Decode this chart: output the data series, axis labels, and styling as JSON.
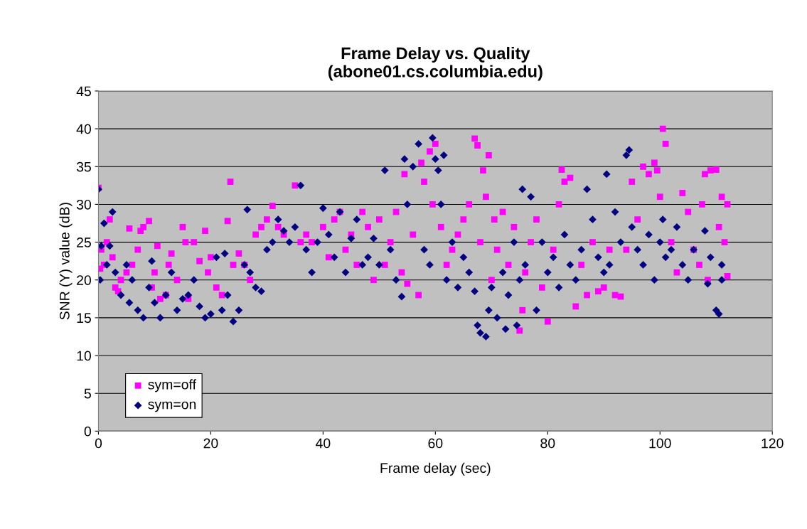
{
  "chart_data": {
    "type": "scatter",
    "title": "Frame Delay vs. Quality\n(abone01.cs.columbia.edu)",
    "xlabel": "Frame delay (sec)",
    "ylabel": "SNR (Y) value (dB)",
    "xlim": [
      0,
      120
    ],
    "xticks": [
      0,
      20,
      40,
      60,
      80,
      100,
      120
    ],
    "ylim": [
      0,
      45
    ],
    "yticks": [
      0,
      5,
      10,
      15,
      20,
      25,
      30,
      35,
      40,
      45
    ],
    "grid": "y",
    "legend": "bottom left",
    "series": [
      {
        "name": "sym=off",
        "color": "#ff00ff",
        "marker": "square",
        "x": [
          0,
          0.3,
          0.5,
          1,
          1.5,
          2,
          2.5,
          3,
          3.5,
          4,
          5,
          5.5,
          6,
          7,
          7.5,
          8,
          9,
          9.5,
          10,
          10.5,
          11,
          12,
          12.5,
          13,
          14,
          15,
          15.5,
          16,
          17,
          18,
          19,
          19.5,
          20,
          21,
          22,
          23,
          23.5,
          24,
          25,
          26,
          27,
          28,
          29,
          30,
          31,
          32,
          33,
          35,
          36,
          37,
          38,
          40,
          41,
          42,
          43,
          44,
          45,
          46,
          47,
          48,
          49,
          50,
          51,
          52,
          53,
          54,
          54.5,
          55,
          56,
          57,
          57.5,
          58,
          59,
          59.5,
          60,
          61,
          62,
          63,
          64,
          65,
          66,
          67,
          67.5,
          68,
          68.5,
          69,
          69.5,
          70,
          70.5,
          71,
          72,
          73,
          74,
          75,
          75.5,
          76,
          77,
          78,
          79,
          80,
          81,
          82,
          82.5,
          83,
          84,
          85,
          86,
          87,
          88,
          89,
          90,
          91,
          92,
          93,
          94,
          95,
          96,
          97,
          98,
          99,
          99.5,
          100,
          100.5,
          101,
          102,
          103,
          104,
          105,
          106,
          107,
          107.5,
          108,
          108.5,
          109,
          110,
          110.5,
          111,
          111.5,
          112,
          112
        ],
        "values": [
          32.2,
          21.5,
          24,
          22,
          25,
          28,
          23,
          19,
          18.5,
          20,
          21,
          26.8,
          22,
          24,
          26.5,
          27,
          27.8,
          19,
          21,
          24.5,
          17.5,
          18,
          22,
          23.5,
          20,
          27,
          25,
          17.5,
          25,
          22.5,
          26.5,
          21,
          23,
          19,
          18,
          27.8,
          33,
          22,
          23.5,
          22,
          20,
          26,
          27,
          28,
          29.8,
          27,
          26,
          32.5,
          25,
          26,
          25,
          27,
          23,
          28,
          29,
          24,
          26,
          22,
          29,
          27,
          20,
          28,
          22,
          25,
          29,
          21,
          34,
          19.5,
          26,
          18,
          35.5,
          33,
          37,
          30,
          38,
          27,
          22,
          24,
          26,
          28,
          30,
          38.7,
          37.8,
          25,
          34.5,
          31,
          36.5,
          20,
          28,
          24,
          29,
          22,
          27,
          13.3,
          16,
          21,
          25,
          28,
          19,
          14.5,
          24,
          30,
          34.6,
          33,
          33.5,
          16.5,
          22,
          18,
          25,
          18.5,
          19,
          24,
          18,
          17.8,
          24,
          33,
          28,
          35,
          34,
          35.5,
          34.5,
          31,
          40,
          38,
          25,
          21,
          31.5,
          29,
          24,
          22,
          30,
          34,
          20,
          34.5,
          34.6,
          27,
          31,
          25,
          20.5,
          30
        ]
      },
      {
        "name": "sym=on",
        "color": "#000080",
        "marker": "diamond",
        "x": [
          0,
          0.3,
          0.5,
          1,
          1.5,
          2,
          2.5,
          3,
          4,
          5,
          5.5,
          6,
          7,
          8,
          9,
          9.5,
          10,
          11,
          12,
          13,
          14,
          15,
          16,
          17,
          18,
          19,
          20,
          21,
          22,
          22.5,
          23,
          24,
          25,
          26,
          26.5,
          27,
          28,
          29,
          30,
          31,
          32,
          33,
          34,
          35,
          36,
          37,
          38,
          39,
          40,
          41,
          42,
          43,
          44,
          45,
          46,
          47,
          48,
          49,
          50,
          51,
          52,
          53,
          54,
          54.5,
          55,
          56,
          57,
          58,
          59,
          59.5,
          60,
          60.5,
          61,
          61.5,
          62,
          63,
          64,
          65,
          66,
          67,
          67.5,
          68,
          69,
          69.5,
          70,
          71,
          72,
          72.5,
          73,
          74,
          74.5,
          75,
          75.5,
          76,
          77,
          78,
          79,
          80,
          81,
          82,
          83,
          84,
          85,
          86,
          87,
          88,
          89,
          90,
          90.5,
          91,
          92,
          93,
          94,
          94.5,
          95,
          96,
          97,
          98,
          99,
          100,
          100.5,
          101,
          102,
          103,
          104,
          105,
          106,
          108,
          108.5,
          109,
          110,
          110.5,
          111,
          111
        ],
        "values": [
          32,
          20,
          24.5,
          27.5,
          22,
          24.5,
          29,
          21,
          18,
          22,
          17,
          20,
          16,
          15,
          19,
          22.5,
          17,
          15,
          18,
          21,
          16,
          17.5,
          18,
          20,
          16.5,
          15,
          15.5,
          23,
          16,
          23.5,
          18,
          14.5,
          16,
          22,
          29.3,
          21,
          19,
          18.5,
          24,
          25,
          28,
          26.5,
          25,
          27,
          32.5,
          24,
          21,
          25,
          29.5,
          26,
          23,
          29,
          21,
          25.5,
          28,
          22,
          23,
          25.5,
          22,
          34.5,
          24,
          20,
          17.8,
          36,
          30,
          35,
          38,
          24,
          22,
          38.8,
          36,
          34.5,
          30,
          36.5,
          20,
          25,
          19,
          23,
          21,
          18.5,
          14,
          13,
          12.5,
          16,
          19,
          15,
          21,
          13.5,
          18,
          25,
          14,
          20,
          32,
          22,
          31,
          16,
          25,
          21,
          23,
          19,
          26,
          22,
          20,
          24,
          32,
          28,
          23,
          21,
          34,
          22,
          29,
          25,
          36.5,
          37.2,
          27,
          24,
          22,
          26,
          20,
          25,
          28,
          23,
          24,
          27,
          22,
          20,
          24,
          26.5,
          19.5,
          23,
          16,
          15.5,
          20,
          22
        ]
      }
    ]
  }
}
